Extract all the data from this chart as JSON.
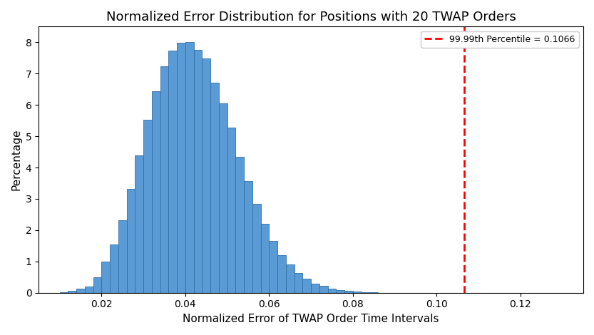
{
  "title": "Normalized Error Distribution for Positions with 20 TWAP Orders",
  "xlabel": "Normalized Error of TWAP Order Time Intervals",
  "ylabel": "Percentage",
  "percentile_label": "99.99th Percentile = 0.1066",
  "percentile_value": 0.1066,
  "bar_color": "#5B9BD5",
  "bar_edge_color": "#2F6EA5",
  "vline_color": "red",
  "vline_style": "--",
  "xlim": [
    0.005,
    0.135
  ],
  "ylim": [
    0,
    8.5
  ],
  "xticks": [
    0.02,
    0.04,
    0.06,
    0.08,
    0.1,
    0.12
  ],
  "yticks": [
    0,
    1,
    2,
    3,
    4,
    5,
    6,
    7,
    8
  ],
  "bin_width": 0.002,
  "bin_starts": [
    0.01,
    0.012,
    0.014,
    0.016,
    0.018,
    0.02,
    0.022,
    0.024,
    0.026,
    0.028,
    0.03,
    0.032,
    0.034,
    0.036,
    0.038,
    0.04,
    0.042,
    0.044,
    0.046,
    0.048,
    0.05,
    0.052,
    0.054,
    0.056,
    0.058,
    0.06,
    0.062,
    0.064,
    0.066,
    0.068,
    0.07,
    0.072,
    0.074,
    0.076,
    0.078,
    0.08,
    0.082,
    0.084,
    0.086,
    0.088,
    0.09,
    0.092,
    0.094,
    0.096,
    0.098,
    0.1,
    0.102,
    0.104
  ],
  "bar_heights": [
    0.02,
    0.07,
    0.13,
    0.2,
    0.5,
    1.0,
    1.55,
    2.32,
    3.31,
    4.38,
    5.52,
    6.44,
    7.24,
    7.73,
    7.98,
    8.0,
    7.76,
    7.49,
    6.72,
    6.06,
    5.27,
    4.35,
    3.57,
    2.85,
    2.21,
    1.66,
    1.2,
    0.9,
    0.64,
    0.44,
    0.3,
    0.22,
    0.14,
    0.09,
    0.06,
    0.03,
    0.02,
    0.01,
    0.005,
    0.003,
    0.002,
    0.001,
    0.001,
    0.0,
    0.0,
    0.0,
    0.0,
    0.0
  ],
  "legend_loc": "upper right"
}
